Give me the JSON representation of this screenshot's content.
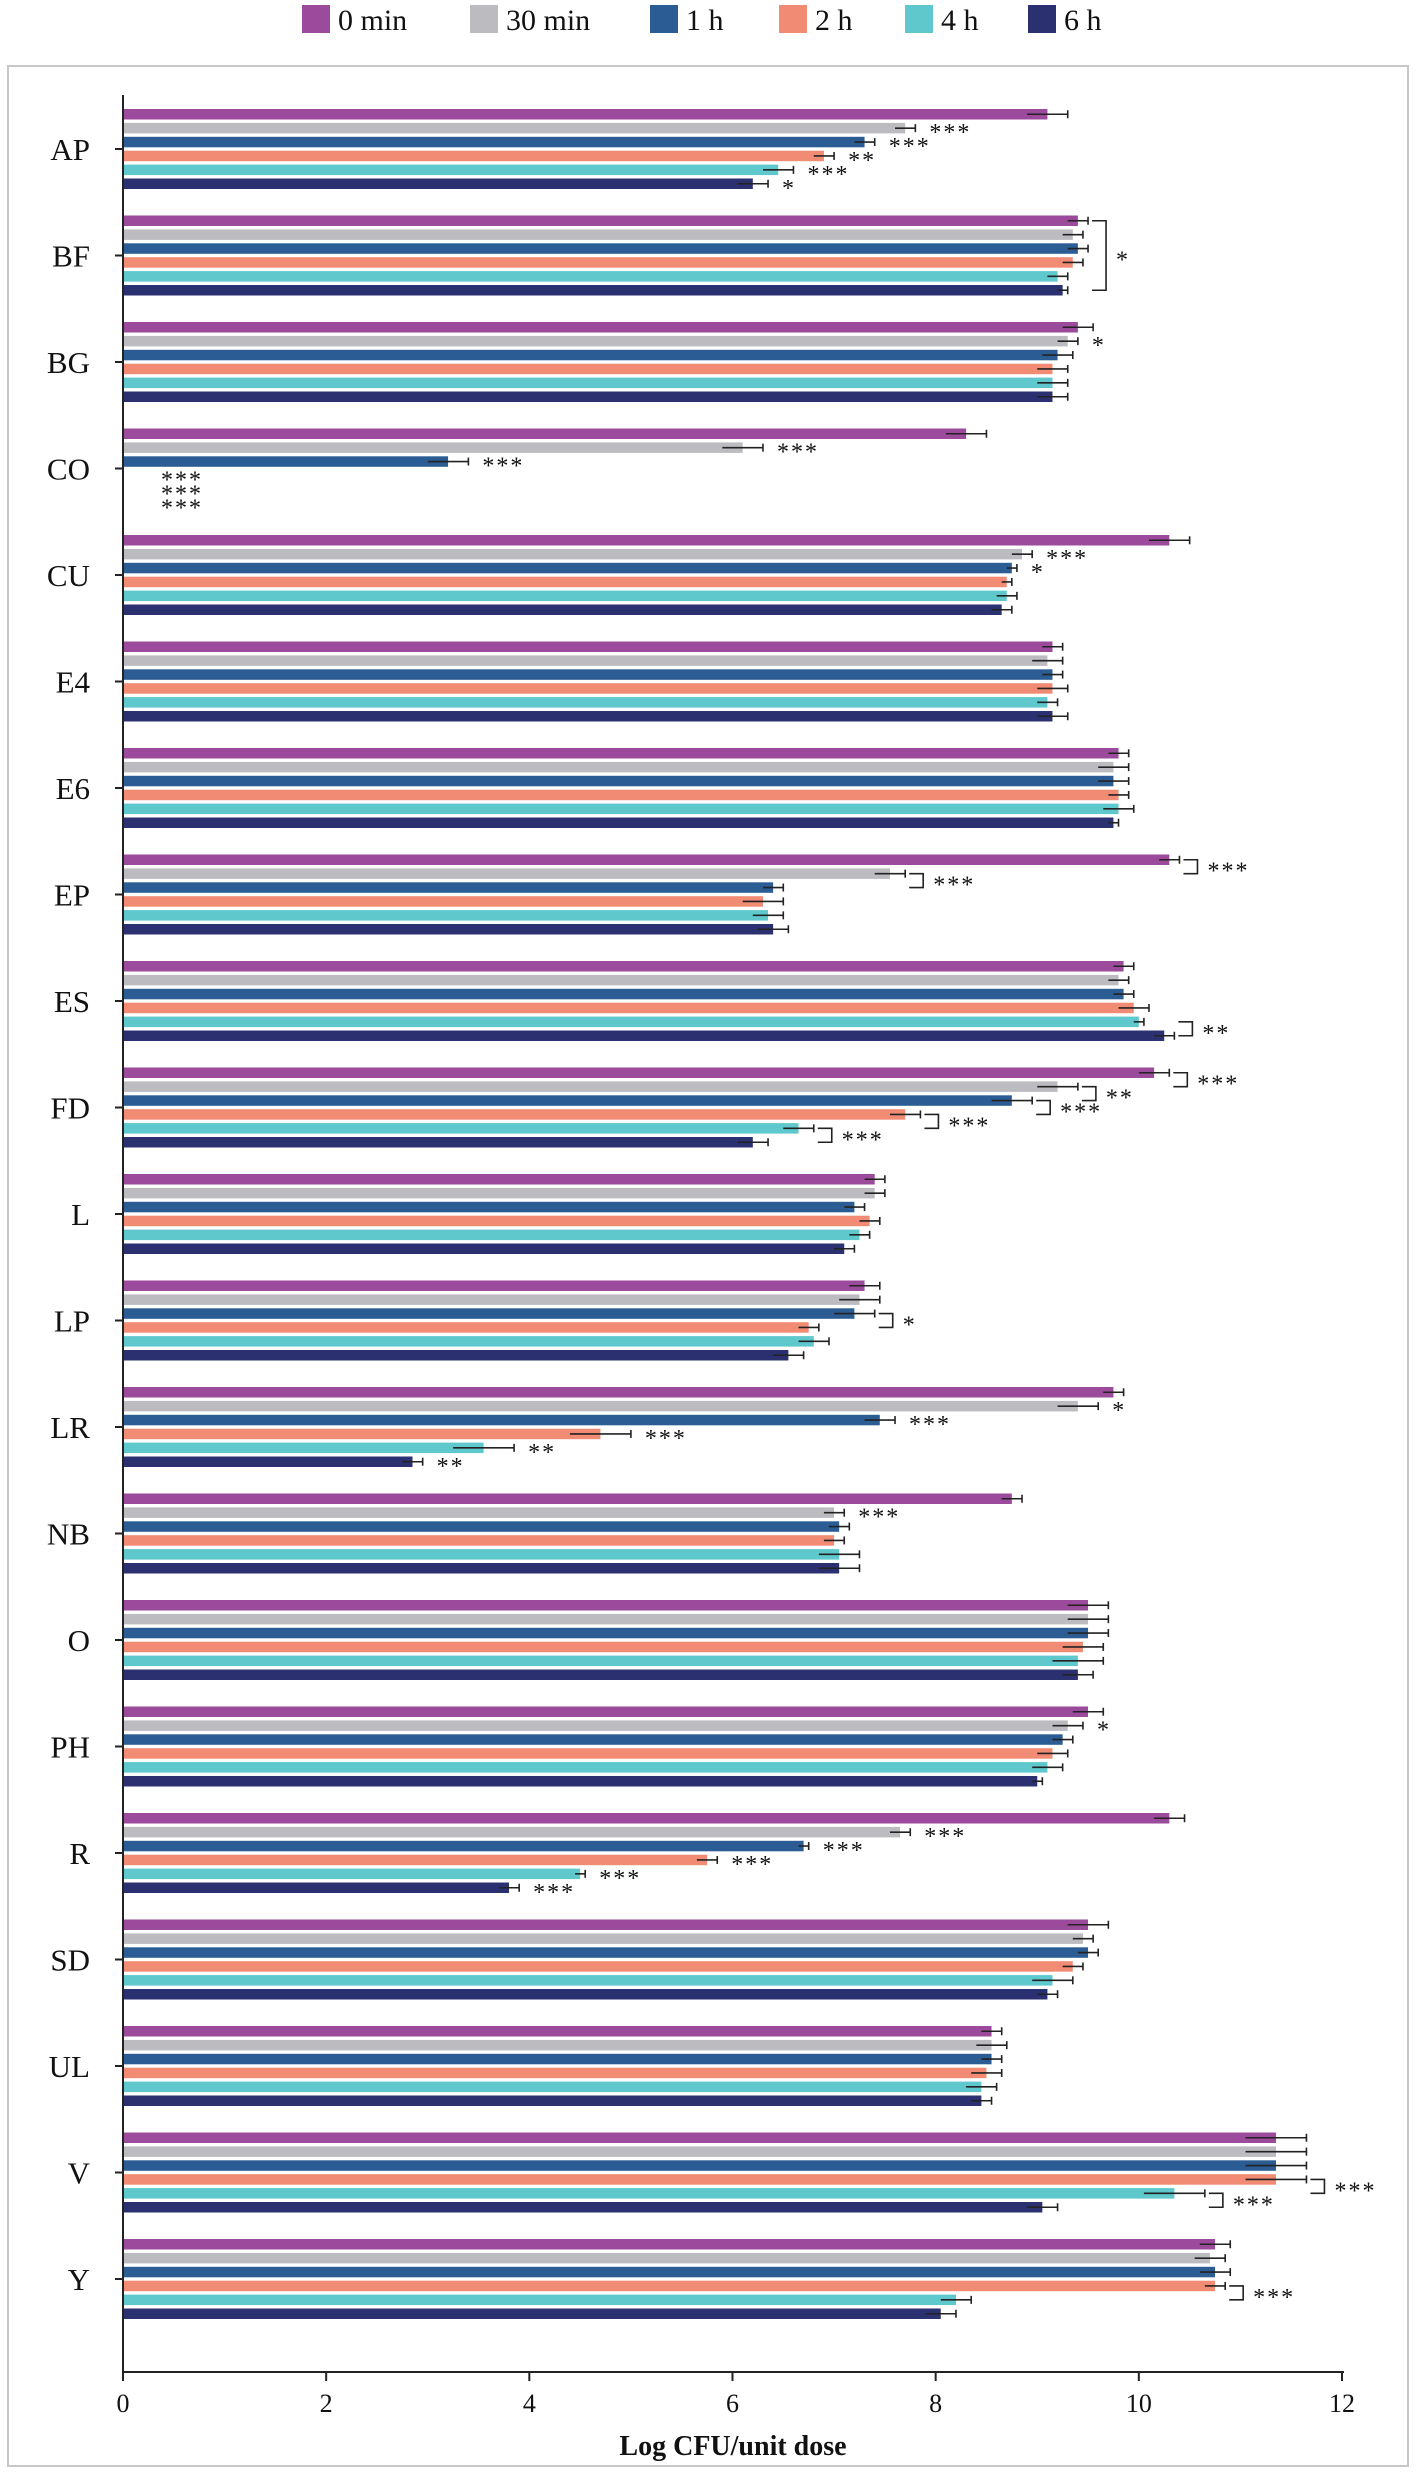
{
  "chart_data": {
    "type": "bar",
    "orientation": "horizontal",
    "xlabel": "Log CFU/unit dose",
    "xlim": [
      0,
      12
    ],
    "xticks": [
      0,
      2,
      4,
      6,
      8,
      10,
      12
    ],
    "grid": false,
    "legend_position": "top",
    "categories": [
      "AP",
      "BF",
      "BG",
      "CO",
      "CU",
      "E4",
      "E6",
      "EP",
      "ES",
      "FD",
      "L",
      "LP",
      "LR",
      "NB",
      "O",
      "PH",
      "R",
      "SD",
      "UL",
      "V",
      "Y"
    ],
    "series": [
      {
        "name": "0 min",
        "color": "#9b4a9c",
        "values": [
          9.1,
          9.4,
          9.4,
          8.3,
          10.3,
          9.15,
          9.8,
          10.3,
          9.85,
          10.15,
          7.4,
          7.3,
          9.75,
          8.75,
          9.5,
          9.5,
          10.3,
          9.5,
          8.55,
          11.35,
          10.75
        ],
        "errors": [
          0.2,
          0.1,
          0.15,
          0.2,
          0.2,
          0.1,
          0.1,
          0.1,
          0.1,
          0.15,
          0.1,
          0.15,
          0.1,
          0.1,
          0.2,
          0.15,
          0.15,
          0.2,
          0.1,
          0.3,
          0.15
        ]
      },
      {
        "name": "30 min",
        "color": "#bcbcc0",
        "values": [
          7.7,
          9.35,
          9.3,
          6.1,
          8.85,
          9.1,
          9.75,
          7.55,
          9.8,
          9.2,
          7.4,
          7.25,
          9.4,
          7.0,
          9.5,
          9.3,
          7.65,
          9.45,
          8.55,
          11.35,
          10.7
        ],
        "errors": [
          0.1,
          0.1,
          0.1,
          0.2,
          0.1,
          0.15,
          0.15,
          0.15,
          0.1,
          0.2,
          0.1,
          0.2,
          0.2,
          0.1,
          0.2,
          0.15,
          0.1,
          0.1,
          0.15,
          0.3,
          0.15
        ]
      },
      {
        "name": "1 h",
        "color": "#2b5d94",
        "values": [
          7.3,
          9.4,
          9.2,
          3.2,
          8.75,
          9.15,
          9.75,
          6.4,
          9.85,
          8.75,
          7.2,
          7.2,
          7.45,
          7.05,
          9.5,
          9.25,
          6.7,
          9.5,
          8.55,
          11.35,
          10.75
        ],
        "errors": [
          0.1,
          0.1,
          0.15,
          0.2,
          0.05,
          0.1,
          0.15,
          0.1,
          0.1,
          0.2,
          0.1,
          0.2,
          0.15,
          0.1,
          0.2,
          0.1,
          0.05,
          0.1,
          0.1,
          0.3,
          0.15
        ]
      },
      {
        "name": "2 h",
        "color": "#f28b74",
        "values": [
          6.9,
          9.35,
          9.15,
          0,
          8.7,
          9.15,
          9.8,
          6.3,
          9.95,
          7.7,
          7.35,
          6.75,
          4.7,
          7.0,
          9.45,
          9.15,
          5.75,
          9.35,
          8.5,
          11.35,
          10.75
        ],
        "errors": [
          0.1,
          0.1,
          0.15,
          0,
          0.05,
          0.15,
          0.1,
          0.2,
          0.15,
          0.15,
          0.1,
          0.1,
          0.3,
          0.1,
          0.2,
          0.15,
          0.1,
          0.1,
          0.15,
          0.3,
          0.1
        ]
      },
      {
        "name": "4 h",
        "color": "#5ec8cc",
        "values": [
          6.45,
          9.2,
          9.15,
          0,
          8.7,
          9.1,
          9.8,
          6.35,
          10.0,
          6.65,
          7.25,
          6.8,
          3.55,
          7.05,
          9.4,
          9.1,
          4.5,
          9.15,
          8.45,
          10.35,
          8.2
        ],
        "errors": [
          0.15,
          0.1,
          0.15,
          0,
          0.1,
          0.1,
          0.15,
          0.15,
          0.05,
          0.15,
          0.1,
          0.15,
          0.3,
          0.2,
          0.25,
          0.15,
          0.05,
          0.2,
          0.15,
          0.3,
          0.15
        ]
      },
      {
        "name": "6 h",
        "color": "#2b3170",
        "values": [
          6.2,
          9.25,
          9.15,
          0,
          8.65,
          9.15,
          9.75,
          6.4,
          10.25,
          6.2,
          7.1,
          6.55,
          2.85,
          7.05,
          9.4,
          9.0,
          3.8,
          9.1,
          8.45,
          9.05,
          8.05
        ],
        "errors": [
          0.15,
          0.05,
          0.15,
          0,
          0.1,
          0.15,
          0.05,
          0.15,
          0.1,
          0.15,
          0.1,
          0.15,
          0.1,
          0.2,
          0.15,
          0.05,
          0.1,
          0.1,
          0.1,
          0.15,
          0.15
        ]
      }
    ],
    "annotations": [
      {
        "cat": "AP",
        "series": "30 min",
        "text": "***"
      },
      {
        "cat": "AP",
        "series": "1 h",
        "text": "***"
      },
      {
        "cat": "AP",
        "series": "2 h",
        "text": "**"
      },
      {
        "cat": "AP",
        "series": "4 h",
        "text": "***"
      },
      {
        "cat": "AP",
        "series": "6 h",
        "text": "*"
      },
      {
        "cat": "BF",
        "series": "2 h",
        "text": "*",
        "bracket": [
          "0 min",
          "6 h"
        ]
      },
      {
        "cat": "BG",
        "series": "30 min",
        "text": "*"
      },
      {
        "cat": "CO",
        "series": "30 min",
        "text": "***"
      },
      {
        "cat": "CO",
        "series": "1 h",
        "text": "***"
      },
      {
        "cat": "CO",
        "series": "2 h",
        "text": "***"
      },
      {
        "cat": "CO",
        "series": "4 h",
        "text": "***"
      },
      {
        "cat": "CO",
        "series": "6 h",
        "text": "***"
      },
      {
        "cat": "CU",
        "series": "30 min",
        "text": "***"
      },
      {
        "cat": "CU",
        "series": "1 h",
        "text": "*"
      },
      {
        "cat": "EP",
        "series": "0 min",
        "text": "***",
        "bracket": [
          "0 min",
          "30 min"
        ]
      },
      {
        "cat": "EP",
        "series": "1 h",
        "text": "***",
        "bracket": [
          "30 min",
          "1 h"
        ]
      },
      {
        "cat": "ES",
        "series": "6 h",
        "text": "**",
        "bracket": [
          "4 h",
          "6 h"
        ]
      },
      {
        "cat": "FD",
        "series": "0 min",
        "text": "***",
        "bracket": [
          "0 min",
          "30 min"
        ]
      },
      {
        "cat": "FD",
        "series": "30 min",
        "text": "**",
        "bracket": [
          "30 min",
          "1 h"
        ]
      },
      {
        "cat": "FD",
        "series": "1 h",
        "text": "***",
        "bracket": [
          "1 h",
          "2 h"
        ]
      },
      {
        "cat": "FD",
        "series": "2 h",
        "text": "***",
        "bracket": [
          "2 h",
          "4 h"
        ]
      },
      {
        "cat": "FD",
        "series": "4 h",
        "text": "***",
        "bracket": [
          "4 h",
          "6 h"
        ]
      },
      {
        "cat": "LP",
        "series": "2 h",
        "text": "*",
        "bracket": [
          "1 h",
          "2 h"
        ]
      },
      {
        "cat": "LR",
        "series": "30 min",
        "text": "*"
      },
      {
        "cat": "LR",
        "series": "1 h",
        "text": "***"
      },
      {
        "cat": "LR",
        "series": "2 h",
        "text": "***"
      },
      {
        "cat": "LR",
        "series": "4 h",
        "text": "**"
      },
      {
        "cat": "LR",
        "series": "6 h",
        "text": "**"
      },
      {
        "cat": "NB",
        "series": "30 min",
        "text": "***"
      },
      {
        "cat": "PH",
        "series": "30 min",
        "text": "*"
      },
      {
        "cat": "R",
        "series": "30 min",
        "text": "***"
      },
      {
        "cat": "R",
        "series": "1 h",
        "text": "***"
      },
      {
        "cat": "R",
        "series": "2 h",
        "text": "***"
      },
      {
        "cat": "R",
        "series": "4 h",
        "text": "***"
      },
      {
        "cat": "R",
        "series": "6 h",
        "text": "***"
      },
      {
        "cat": "V",
        "series": "4 h",
        "text": "***",
        "bracket": [
          "2 h",
          "4 h"
        ]
      },
      {
        "cat": "V",
        "series": "6 h",
        "text": "***",
        "bracket": [
          "4 h",
          "6 h"
        ]
      },
      {
        "cat": "Y",
        "series": "4 h",
        "text": "***",
        "bracket": [
          "2 h",
          "4 h"
        ]
      }
    ]
  }
}
